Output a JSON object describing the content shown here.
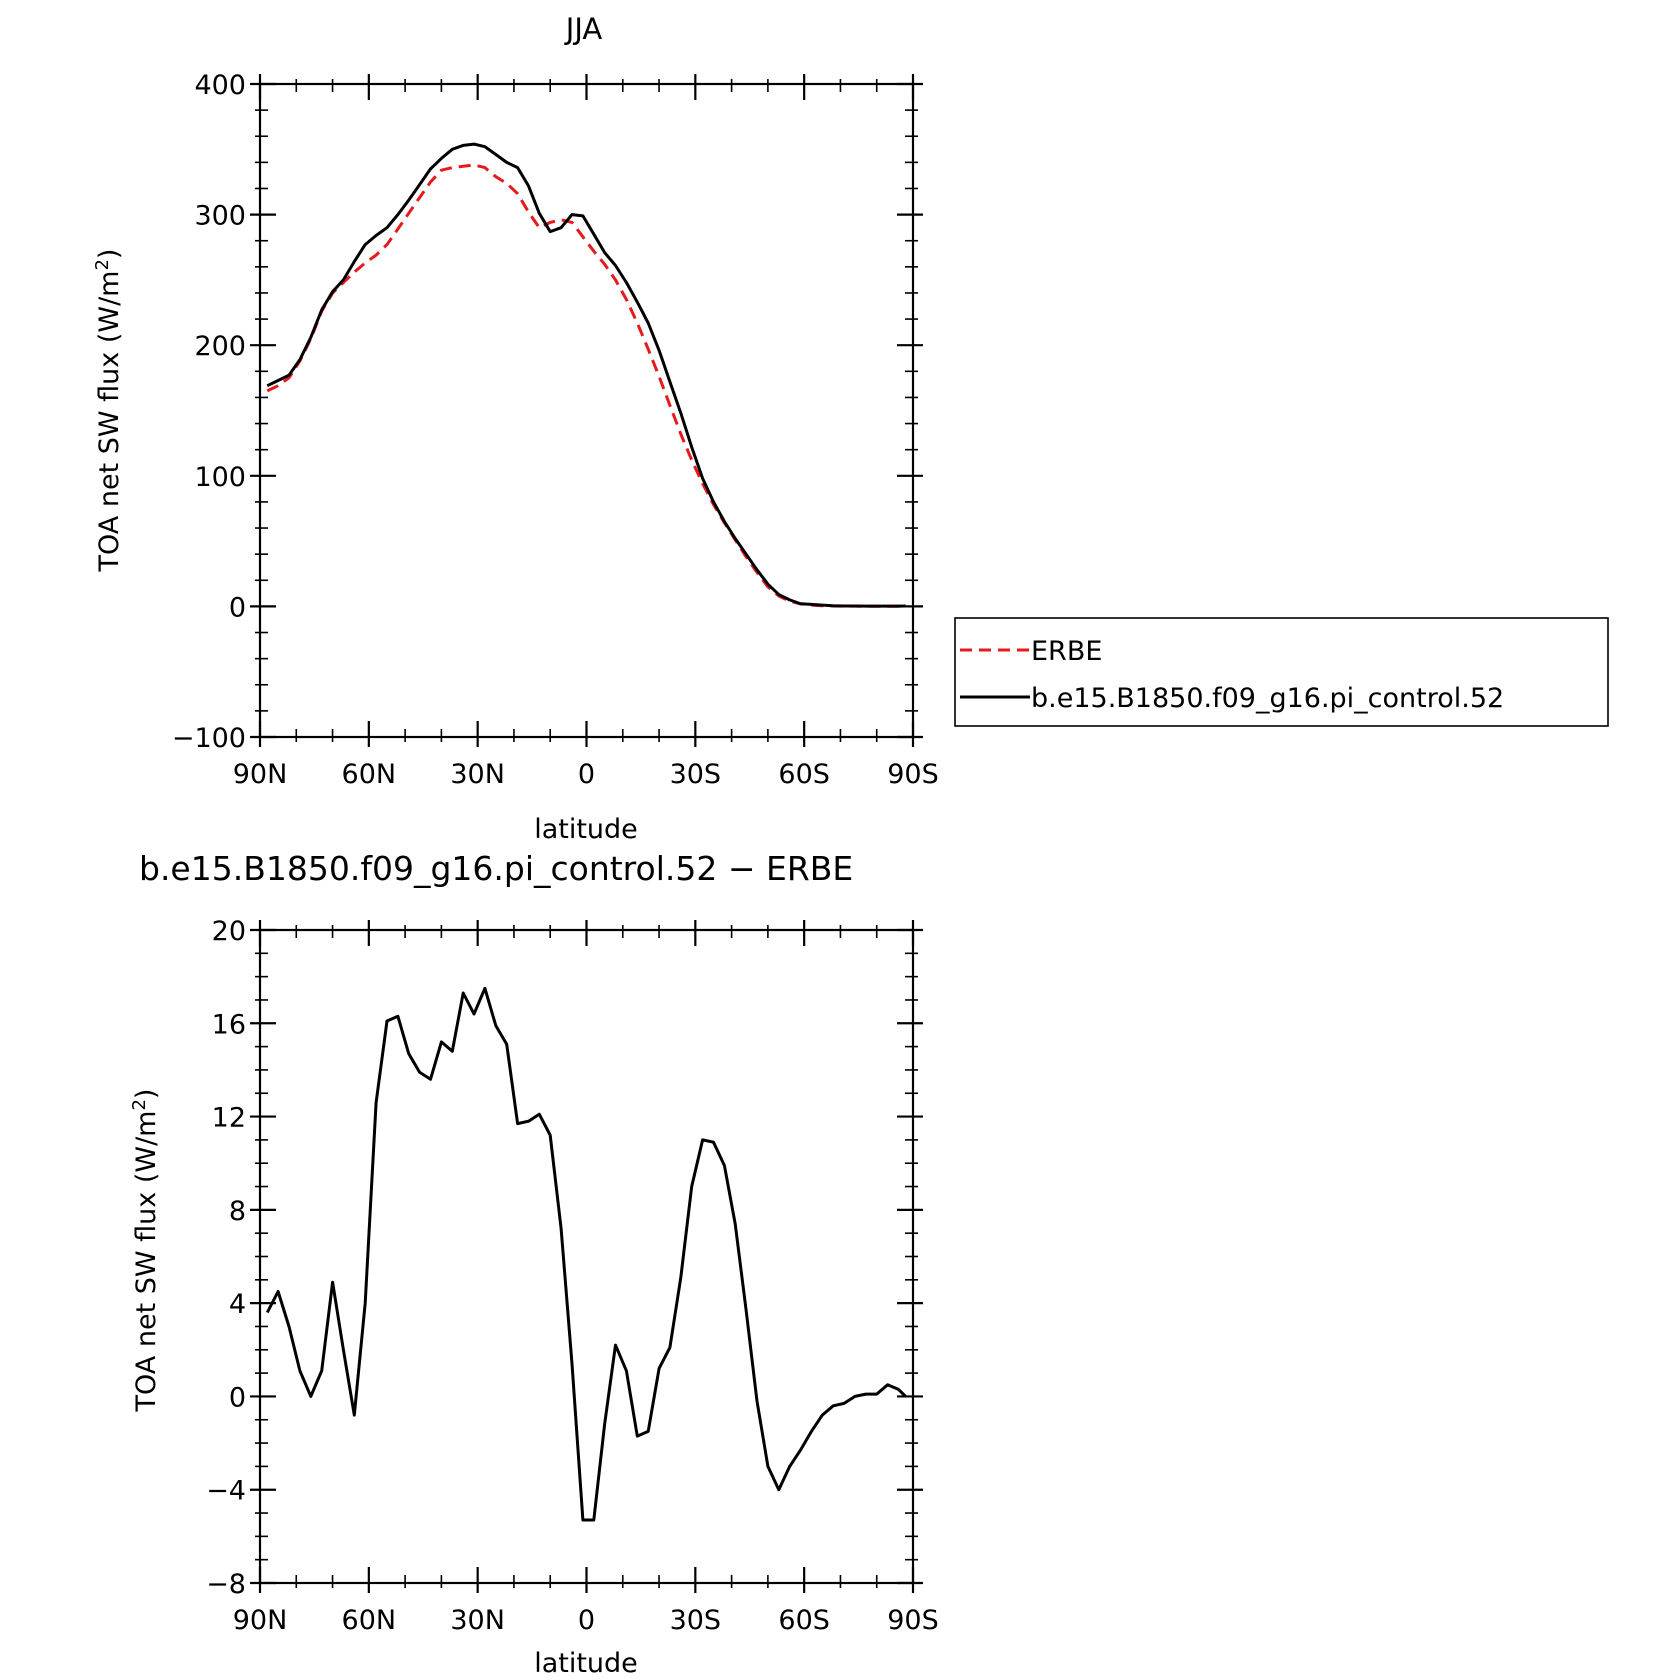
{
  "panels": [
    {
      "chart_data": {
        "type": "line",
        "title": "JJA",
        "xlabel": "latitude",
        "ylabel": "TOA net SW flux (W/m",
        "ylabel_sup": "2",
        "ylabel_close": ")",
        "xlim": [
          -90,
          90
        ],
        "ylim": [
          -100,
          400
        ],
        "xticks": [
          -90,
          -60,
          -30,
          0,
          30,
          60,
          90
        ],
        "xticklabels": [
          "90N",
          "60N",
          "30N",
          "0",
          "30S",
          "60S",
          "90S"
        ],
        "yticks": [
          -100,
          0,
          100,
          200,
          300,
          400
        ],
        "yticklabels": [
          "−100",
          "0",
          "100",
          "200",
          "300",
          "400"
        ],
        "grid": false,
        "legend_position": "right",
        "series": [
          {
            "name": "ERBE",
            "color": "#e8191d",
            "dash": true,
            "x": [
              -88,
              -85,
              -82,
              -79,
              -76,
              -73,
              -70,
              -67,
              -64,
              -61,
              -58,
              -55,
              -52,
              -49,
              -46,
              -43,
              -40,
              -37,
              -34,
              -31,
              -28,
              -25,
              -22,
              -19,
              -16,
              -13,
              -10,
              -7,
              -4,
              -1,
              2,
              5,
              8,
              11,
              14,
              17,
              20,
              23,
              26,
              29,
              32,
              35,
              38,
              41,
              44,
              47,
              50,
              53,
              56,
              59,
              62,
              65,
              68,
              71,
              74,
              77,
              80,
              83,
              86,
              88
            ],
            "values": [
              165,
              169,
              175,
              188,
              205,
              226,
              240,
              248,
              256,
              263,
              269,
              277,
              289,
              301,
              313,
              325,
              334,
              336,
              337,
              338,
              336,
              329,
              324,
              316,
              302,
              290,
              294,
              296,
              294,
              283,
              272,
              262,
              250,
              235,
              217,
              197,
              176,
              154,
              132,
              112,
              94,
              78,
              64,
              51,
              38,
              26,
              15,
              8,
              4,
              2,
              1,
              0.5,
              0.3,
              0.2,
              0.2,
              0.1,
              0.1,
              0.1,
              0.1,
              0.1
            ]
          },
          {
            "name": "b.e15.B1850.f09_g16.pi_control.52",
            "color": "#000000",
            "dash": false,
            "x": [
              -88,
              -85,
              -82,
              -79,
              -76,
              -73,
              -70,
              -67,
              -64,
              -61,
              -58,
              -55,
              -52,
              -49,
              -46,
              -43,
              -40,
              -37,
              -34,
              -31,
              -28,
              -25,
              -22,
              -19,
              -16,
              -13,
              -10,
              -7,
              -4,
              -1,
              2,
              5,
              8,
              11,
              14,
              17,
              20,
              23,
              26,
              29,
              32,
              35,
              38,
              41,
              44,
              47,
              50,
              53,
              56,
              59,
              62,
              65,
              68,
              71,
              74,
              77,
              80,
              83,
              86,
              88
            ],
            "values": [
              169,
              173,
              177,
              189,
              206,
              227,
              241,
              250,
              264,
              277,
              284,
              290,
              300,
              311,
              323,
              335,
              343,
              350,
              353,
              354,
              352,
              346,
              340,
              336,
              322,
              301,
              287,
              290,
              300,
              299,
              285,
              271,
              261,
              248,
              233,
              217,
              196,
              172,
              148,
              122,
              98,
              80,
              65,
              52,
              40,
              28,
              17,
              9,
              5,
              2,
              1.5,
              1,
              0.5,
              0.3,
              0.3,
              0.2,
              0.2,
              0.2,
              0.2,
              0.3
            ]
          }
        ]
      }
    },
    {
      "chart_data": {
        "type": "line",
        "title": "b.e15.B1850.f09_g16.pi_control.52 − ERBE",
        "xlabel": "latitude",
        "ylabel": "TOA net SW flux (W/m",
        "ylabel_sup": "2",
        "ylabel_close": ")",
        "xlim": [
          -90,
          90
        ],
        "ylim": [
          -8,
          20
        ],
        "xticks": [
          -90,
          -60,
          -30,
          0,
          30,
          60,
          90
        ],
        "xticklabels": [
          "90N",
          "60N",
          "30N",
          "0",
          "30S",
          "60S",
          "90S"
        ],
        "yticks": [
          -8,
          -4,
          0,
          4,
          8,
          12,
          16,
          20
        ],
        "yticklabels": [
          "−8",
          "−4",
          "0",
          "4",
          "8",
          "12",
          "16",
          "20"
        ],
        "grid": false,
        "series": [
          {
            "color": "#000000",
            "dash": false,
            "x": [
              -88,
              -85,
              -82,
              -79,
              -76,
              -73,
              -70,
              -67,
              -64,
              -61,
              -58,
              -55,
              -52,
              -49,
              -46,
              -43,
              -40,
              -37,
              -34,
              -31,
              -28,
              -25,
              -22,
              -19,
              -16,
              -13,
              -10,
              -7,
              -4,
              -1,
              2,
              5,
              8,
              11,
              14,
              17,
              20,
              23,
              26,
              29,
              32,
              35,
              38,
              41,
              44,
              47,
              50,
              53,
              56,
              59,
              62,
              65,
              68,
              71,
              74,
              77,
              80,
              83,
              86,
              88
            ],
            "values": [
              3.6,
              4.5,
              3.0,
              1.1,
              0.0,
              1.1,
              4.9,
              2.0,
              -0.8,
              4.0,
              12.6,
              16.1,
              16.3,
              14.7,
              13.9,
              13.6,
              15.2,
              14.8,
              17.3,
              16.4,
              17.5,
              15.9,
              15.1,
              11.7,
              11.8,
              12.1,
              11.2,
              7.2,
              1.4,
              -5.3,
              -5.3,
              -1.2,
              2.2,
              1.1,
              -1.7,
              -1.5,
              1.2,
              2.1,
              5.1,
              9.0,
              11.0,
              10.9,
              9.9,
              7.4,
              3.7,
              -0.2,
              -3.0,
              -4.0,
              -3.0,
              -2.3,
              -1.5,
              -0.8,
              -0.4,
              -0.3,
              0.0,
              0.1,
              0.1,
              0.5,
              0.3,
              0.0
            ]
          }
        ]
      }
    }
  ]
}
